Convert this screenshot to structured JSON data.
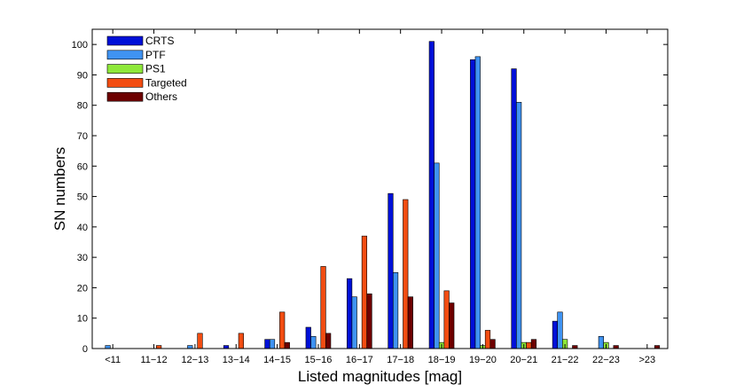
{
  "chart_data": {
    "type": "bar",
    "xlabel": "Listed magnitudes [mag]",
    "ylabel": "SN numbers",
    "ylim": [
      0,
      105
    ],
    "yticks": [
      0,
      10,
      20,
      30,
      40,
      50,
      60,
      70,
      80,
      90,
      100
    ],
    "grid": false,
    "legend_position": "top-left",
    "categories": [
      "<11",
      "11−12",
      "12−13",
      "13−14",
      "14−15",
      "15−16",
      "16−17",
      "17−18",
      "18−19",
      "19−20",
      "20−21",
      "21−22",
      "22−23",
      ">23"
    ],
    "series": [
      {
        "name": "CRTS",
        "color": "#0010d8",
        "values": [
          0,
          0,
          0,
          1,
          3,
          7,
          23,
          51,
          101,
          95,
          92,
          9,
          0,
          0
        ]
      },
      {
        "name": "PTF",
        "color": "#3f93f2",
        "values": [
          1,
          0,
          1,
          0,
          3,
          4,
          17,
          25,
          61,
          96,
          81,
          12,
          4,
          0
        ]
      },
      {
        "name": "PS1",
        "color": "#8ee83a",
        "values": [
          0,
          0,
          0,
          0,
          0,
          0,
          0,
          0,
          2,
          1,
          2,
          3,
          2,
          0
        ]
      },
      {
        "name": "Targeted",
        "color": "#f24d12",
        "values": [
          0,
          1,
          5,
          5,
          12,
          27,
          37,
          49,
          19,
          6,
          2,
          0,
          0,
          0
        ]
      },
      {
        "name": "Others",
        "color": "#6e0000",
        "values": [
          0,
          0,
          0,
          0,
          2,
          5,
          18,
          17,
          15,
          3,
          3,
          1,
          1,
          1
        ]
      }
    ]
  }
}
